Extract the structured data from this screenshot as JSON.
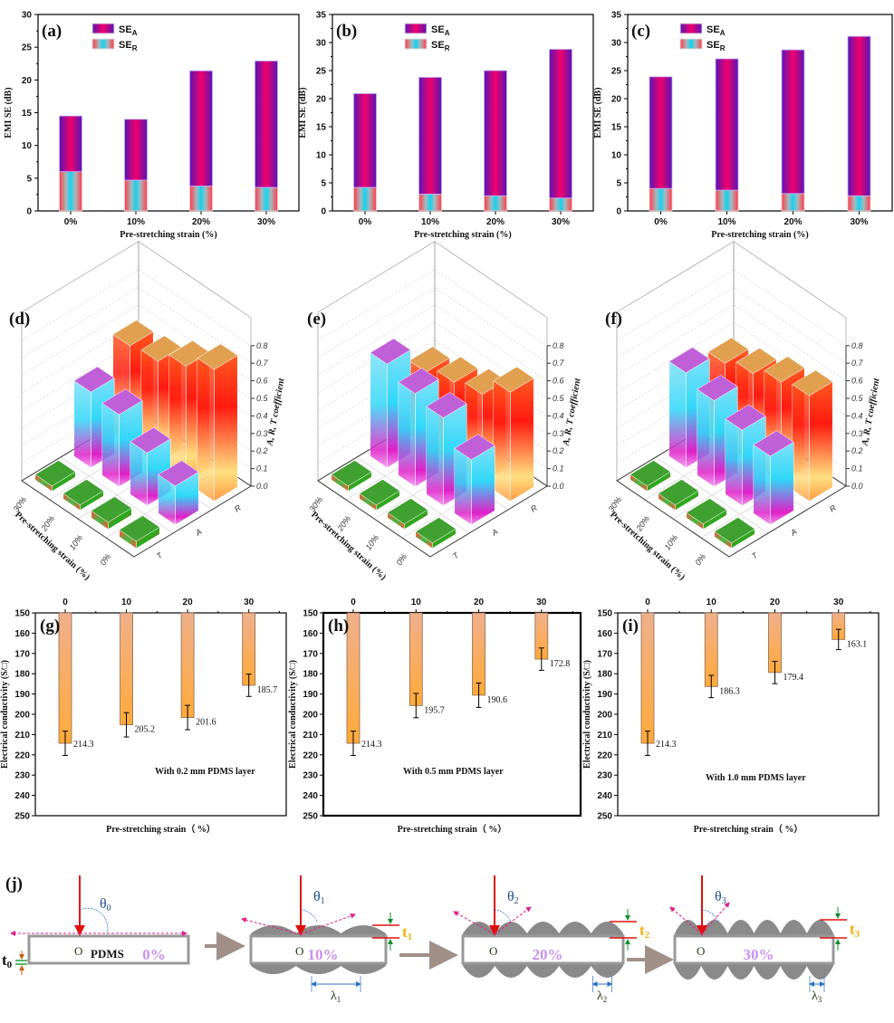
{
  "chart_data": [
    {
      "type": "bar",
      "stacked": true,
      "panel_label": "(a)",
      "xlabel": "Pre-stretching strain (%)",
      "ylabel": "EMI SE (dB)",
      "ylim": [
        0,
        30
      ],
      "yticks": [
        0,
        5,
        10,
        15,
        20,
        25,
        30
      ],
      "categories": [
        "0%",
        "10%",
        "20%",
        "30%"
      ],
      "series": [
        {
          "name": "SE",
          "sub": "R",
          "values": [
            6.0,
            4.7,
            3.8,
            3.6
          ]
        },
        {
          "name": "SE",
          "sub": "A",
          "values": [
            8.5,
            9.3,
            17.6,
            19.3
          ]
        }
      ],
      "legend": "top-left",
      "colors": {
        "SE_A": [
          "#5a14b4",
          "#f2006c"
        ],
        "SE_R": [
          "#ff3a4a",
          "#10d4f0"
        ]
      }
    },
    {
      "type": "bar",
      "stacked": true,
      "panel_label": "(b)",
      "xlabel": "Pre-stretching strain (%)",
      "ylabel": "EMI SE (dB)",
      "ylim": [
        0,
        35
      ],
      "yticks": [
        0,
        5,
        10,
        15,
        20,
        25,
        30,
        35
      ],
      "categories": [
        "0%",
        "10%",
        "20%",
        "30%"
      ],
      "series": [
        {
          "name": "SE",
          "sub": "R",
          "values": [
            4.2,
            3.0,
            2.7,
            2.3
          ]
        },
        {
          "name": "SE",
          "sub": "A",
          "values": [
            16.7,
            20.8,
            22.3,
            26.5
          ]
        }
      ],
      "legend": "top-left"
    },
    {
      "type": "bar",
      "stacked": true,
      "panel_label": "(c)",
      "xlabel": "Pre-stretching strain (%)",
      "ylabel": "EMI SE (dB)",
      "ylim": [
        0,
        35
      ],
      "yticks": [
        0,
        5,
        10,
        15,
        20,
        25,
        30,
        35
      ],
      "categories": [
        "0%",
        "10%",
        "20%",
        "30%"
      ],
      "series": [
        {
          "name": "SE",
          "sub": "R",
          "values": [
            4.0,
            3.7,
            3.1,
            2.7
          ]
        },
        {
          "name": "SE",
          "sub": "A",
          "values": [
            19.9,
            23.4,
            25.6,
            28.4
          ]
        }
      ],
      "legend": "top-left"
    },
    {
      "type": "bar3d",
      "panel_label": "(d)",
      "zlabel": "A, R, T coefficient",
      "ylabel": "Pre-stretching strain (%)",
      "zlim": [
        0,
        0.8
      ],
      "zticks": [
        "0.0",
        "0.1",
        "0.2",
        "0.3",
        "0.4",
        "0.5",
        "0.6",
        "0.7",
        "0.8"
      ],
      "rows": [
        "0%",
        "10%",
        "20%",
        "30%"
      ],
      "columns": [
        "T",
        "A",
        "R"
      ],
      "values": {
        "T": [
          0.04,
          0.04,
          0.01,
          0.01
        ],
        "A": [
          0.22,
          0.3,
          0.41,
          0.43
        ],
        "R": [
          0.75,
          0.66,
          0.58,
          0.56
        ]
      }
    },
    {
      "type": "bar3d",
      "panel_label": "(e)",
      "zlabel": "A, R, T coefficient",
      "ylabel": "Pre-stretching strain (%)",
      "zlim": [
        0,
        0.8
      ],
      "zticks": [
        "0.0",
        "0.1",
        "0.2",
        "0.3",
        "0.4",
        "0.5",
        "0.6",
        "0.7",
        "0.8"
      ],
      "rows": [
        "0%",
        "10%",
        "20%",
        "30%"
      ],
      "columns": [
        "T",
        "A",
        "R"
      ],
      "values": {
        "T": [
          0.01,
          0.01,
          0.01,
          0.01
        ],
        "A": [
          0.37,
          0.5,
          0.53,
          0.59
        ],
        "R": [
          0.62,
          0.5,
          0.46,
          0.41
        ]
      }
    },
    {
      "type": "bar3d",
      "panel_label": "(f)",
      "zlabel": "A, R, T coefficient",
      "ylabel": "Pre-stretching strain (%)",
      "zlim": [
        0,
        0.8
      ],
      "zticks": [
        "0.0",
        "0.1",
        "0.2",
        "0.3",
        "0.4",
        "0.5",
        "0.6",
        "0.7",
        "0.8"
      ],
      "rows": [
        "0%",
        "10%",
        "20%",
        "30%"
      ],
      "columns": [
        "T",
        "A",
        "R"
      ],
      "values": {
        "T": [
          0.01,
          0.01,
          0.01,
          0.01
        ],
        "A": [
          0.39,
          0.43,
          0.49,
          0.54
        ],
        "R": [
          0.6,
          0.57,
          0.51,
          0.46
        ]
      }
    },
    {
      "type": "bar",
      "panel_label": "(g)",
      "xlabel": "Pre-stretching strain（ %）",
      "ylabel": "Electrical conductivity (S/□)",
      "ylim": [
        150,
        250
      ],
      "y_inverted": true,
      "yticks": [
        150,
        160,
        170,
        180,
        190,
        200,
        210,
        220,
        230,
        240,
        250
      ],
      "categories": [
        "0",
        "10",
        "20",
        "30"
      ],
      "values": [
        214.3,
        205.2,
        201.6,
        185.7
      ],
      "errors": [
        6,
        6,
        6,
        5.5
      ],
      "data_labels": [
        "214.3",
        "205.2",
        "201.6",
        "185.7"
      ],
      "annotation": "With 0.2 mm PDMS layer"
    },
    {
      "type": "bar",
      "panel_label": "(h)",
      "xlabel": "Pre-stretching strain（ %）",
      "ylabel": "Electrical conductivity (S/□)",
      "ylim": [
        150,
        250
      ],
      "y_inverted": true,
      "yticks": [
        150,
        160,
        170,
        180,
        190,
        200,
        210,
        220,
        230,
        240,
        250
      ],
      "categories": [
        "0",
        "10",
        "20",
        "30"
      ],
      "values": [
        214.3,
        195.7,
        190.6,
        172.8
      ],
      "errors": [
        6,
        6,
        6,
        5.5
      ],
      "data_labels": [
        "214.3",
        "195.7",
        "190.6",
        "172.8"
      ],
      "annotation": "With 0.5 mm PDMS layer"
    },
    {
      "type": "bar",
      "panel_label": "(i)",
      "xlabel": "Pre-stretching strain（ %）",
      "ylabel": "Electrical conductivity (S/□)",
      "ylim": [
        150,
        250
      ],
      "y_inverted": true,
      "yticks": [
        150,
        160,
        170,
        180,
        190,
        200,
        210,
        220,
        230,
        240,
        250
      ],
      "categories": [
        "0",
        "10",
        "20",
        "30"
      ],
      "values": [
        214.3,
        186.3,
        179.4,
        163.1
      ],
      "errors": [
        6,
        5.5,
        5.5,
        5
      ],
      "data_labels": [
        "214.3",
        "186.3",
        "179.4",
        "163.1"
      ],
      "annotation": "With 1.0 mm PDMS layer"
    }
  ],
  "schematic": {
    "panel_label": "(j)",
    "origin": "O",
    "material": "PDMS",
    "stages": [
      {
        "strain": "0%",
        "theta": "θ",
        "idx": "0",
        "t": "t",
        "lambda": null
      },
      {
        "strain": "10%",
        "theta": "θ",
        "idx": "1",
        "t": "t",
        "lambda": "λ"
      },
      {
        "strain": "20%",
        "theta": "θ",
        "idx": "2",
        "t": "t",
        "lambda": "λ"
      },
      {
        "strain": "30%",
        "theta": "θ",
        "idx": "3",
        "t": "t",
        "lambda": "λ"
      }
    ]
  }
}
